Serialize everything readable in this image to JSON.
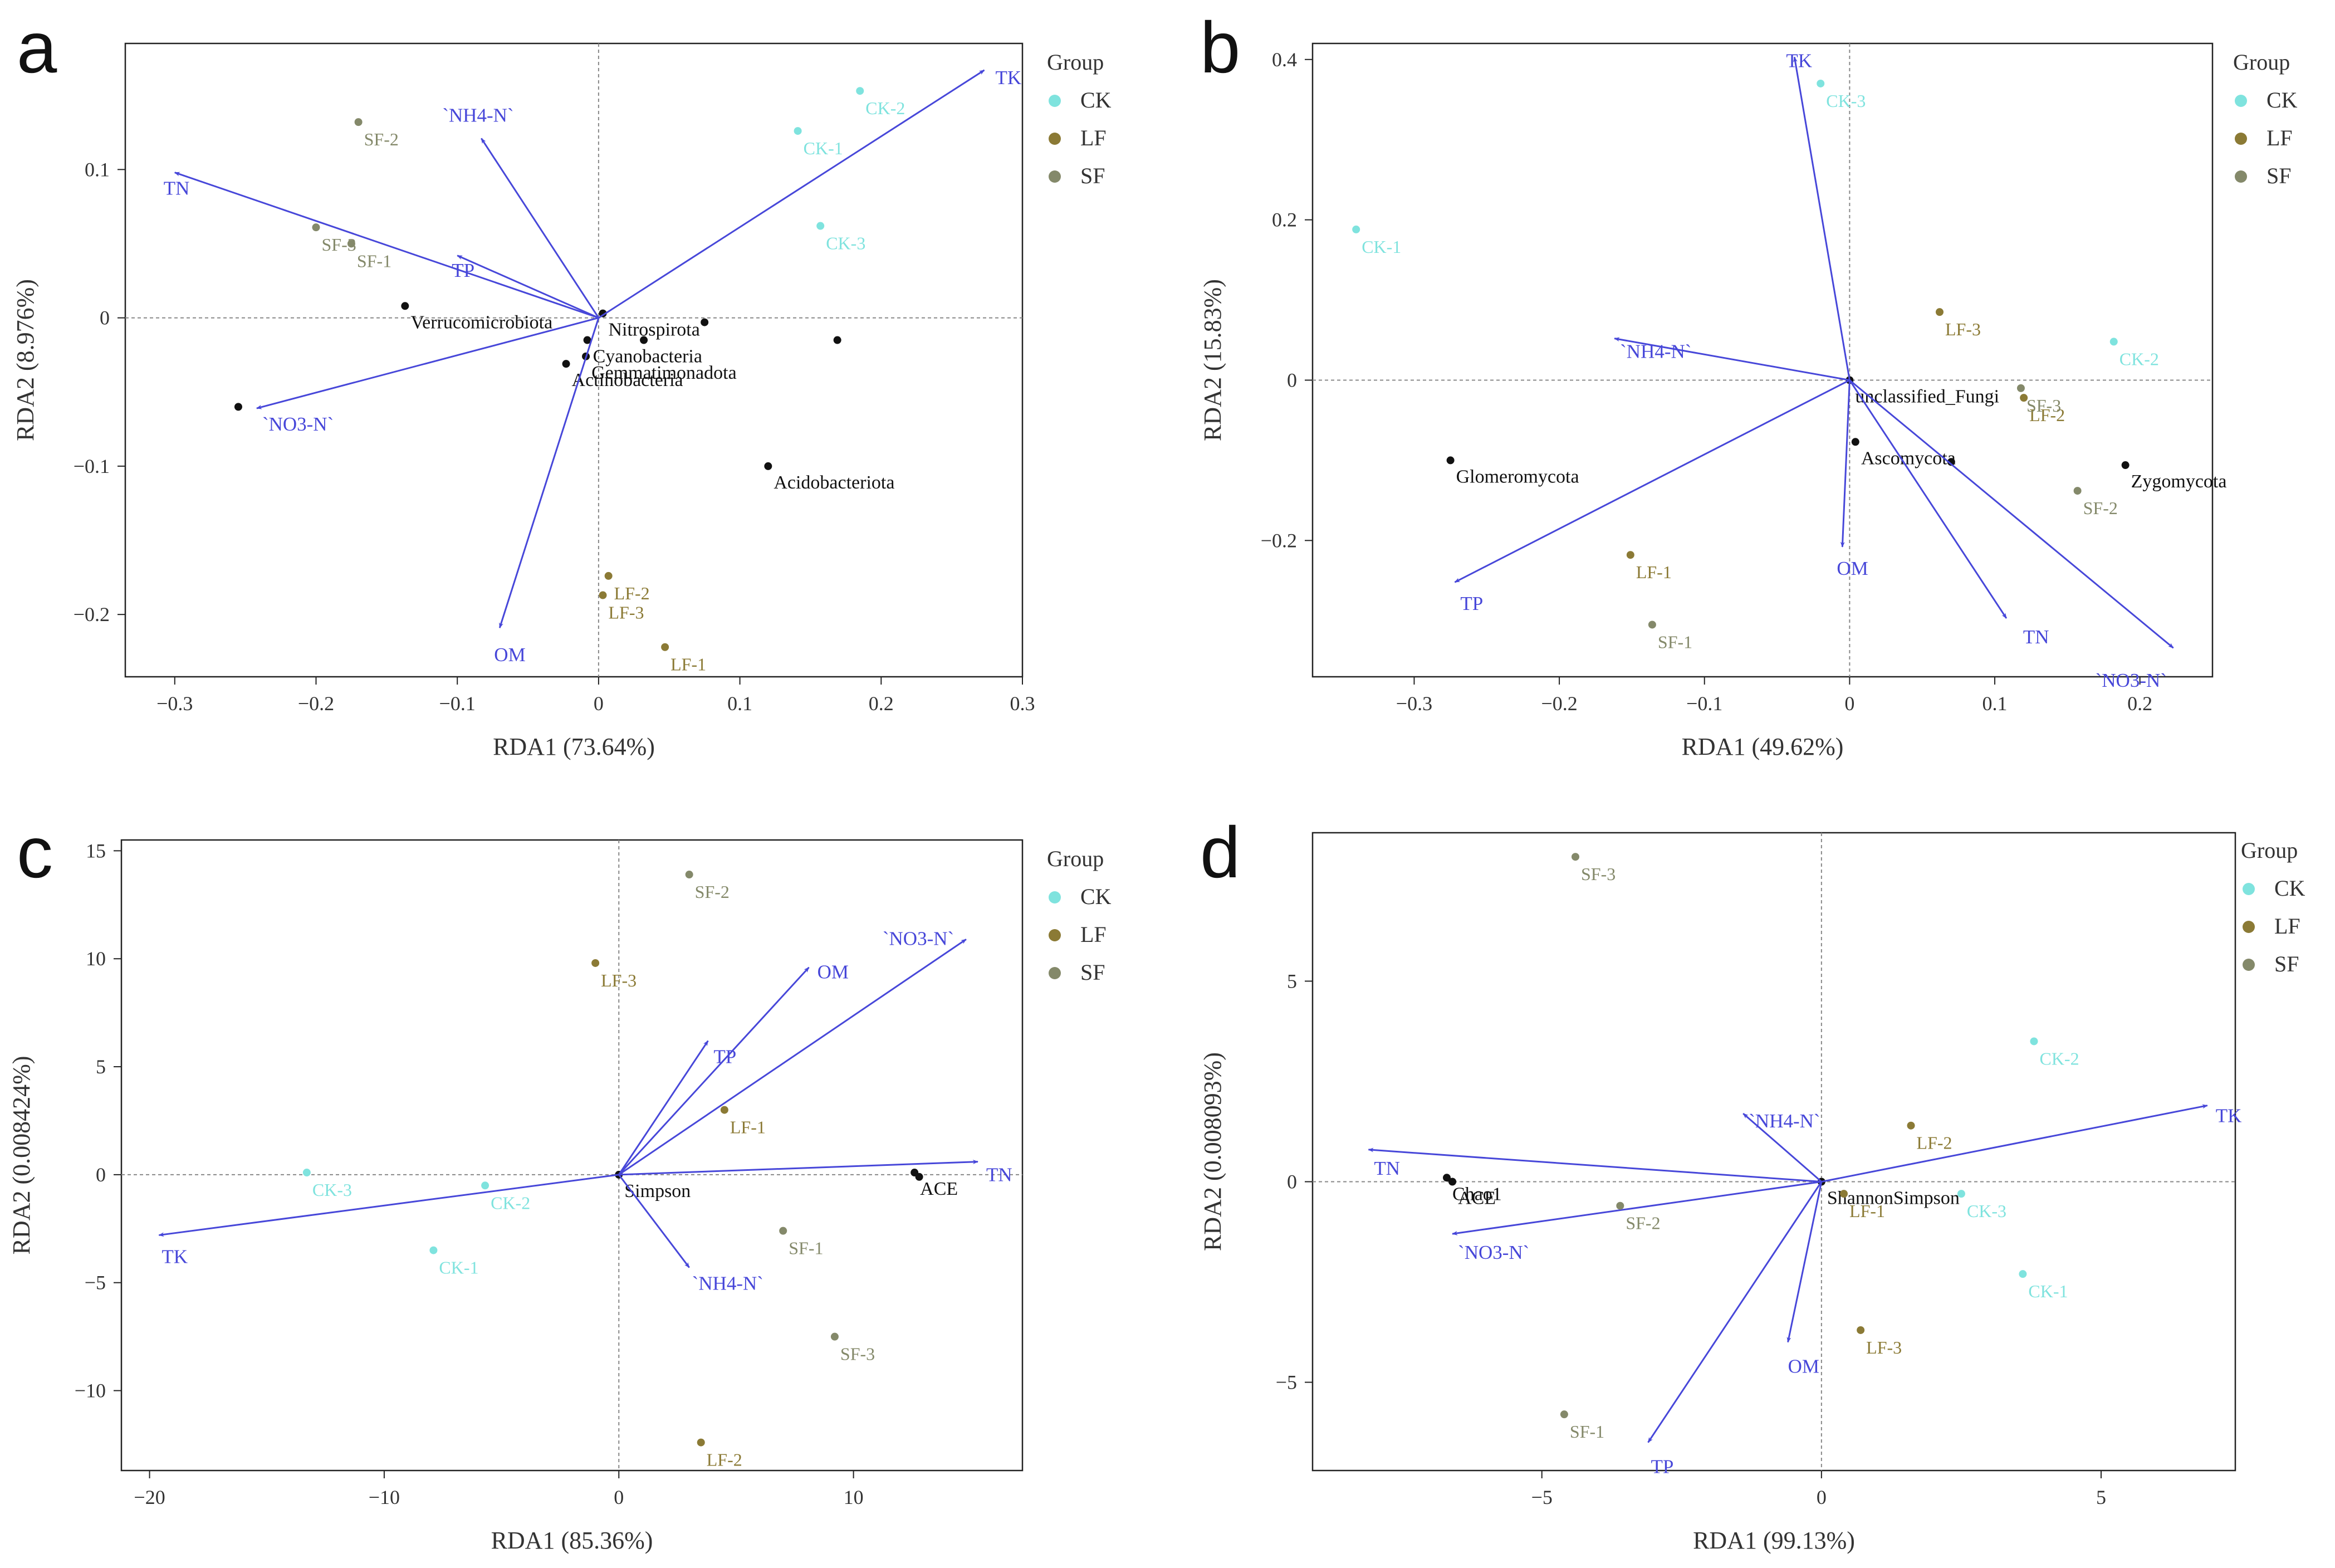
{
  "figure": {
    "colors": {
      "CK": "#7fe3de",
      "LF": "#8b7a35",
      "SF": "#84896a",
      "arrow": "#4747d9",
      "taxon": "#111111"
    },
    "legend": {
      "title": "Group",
      "items": [
        "CK",
        "LF",
        "SF"
      ]
    }
  },
  "chart_data": [
    {
      "panel": "a",
      "type": "scatter",
      "subtype": "rda-biplot",
      "xlabel": "RDA1 (73.64%)",
      "ylabel": "RDA2 (8.976%)",
      "xlim": [
        -0.335,
        0.3
      ],
      "ylim": [
        -0.242,
        0.185
      ],
      "xticks": [
        -0.3,
        -0.2,
        -0.1,
        0,
        0.1,
        0.2,
        0.3
      ],
      "xticklabels": [
        "−0.3",
        "−0.2",
        "−0.1",
        "0",
        "0.1",
        "0.2",
        "0.3"
      ],
      "yticks": [
        0.1,
        0,
        -0.1,
        -0.2
      ],
      "yticklabels": [
        "0.1",
        "0",
        "−0.1",
        "−0.2"
      ],
      "vectors": [
        {
          "label": "TK",
          "x": 0.273,
          "y": 0.167
        },
        {
          "label": "`NH4-N`",
          "x": -0.083,
          "y": 0.121
        },
        {
          "label": "TN",
          "x": -0.3,
          "y": 0.098
        },
        {
          "label": "TP",
          "x": -0.1,
          "y": 0.042
        },
        {
          "label": "`NO3-N`",
          "x": -0.242,
          "y": -0.061
        },
        {
          "label": "OM",
          "x": -0.07,
          "y": -0.209
        }
      ],
      "samples": [
        {
          "label": "CK-1",
          "group": "CK",
          "x": 0.141,
          "y": 0.126
        },
        {
          "label": "CK-2",
          "group": "CK",
          "x": 0.185,
          "y": 0.153
        },
        {
          "label": "CK-3",
          "group": "CK",
          "x": 0.157,
          "y": 0.062
        },
        {
          "label": "SF-1",
          "group": "SF",
          "x": -0.175,
          "y": 0.05
        },
        {
          "label": "SF-2",
          "group": "SF",
          "x": -0.17,
          "y": 0.132
        },
        {
          "label": "SF-3",
          "group": "SF",
          "x": -0.2,
          "y": 0.061
        },
        {
          "label": "LF-1",
          "group": "LF",
          "x": 0.047,
          "y": -0.222
        },
        {
          "label": "LF-2",
          "group": "LF",
          "x": 0.007,
          "y": -0.174
        },
        {
          "label": "LF-3",
          "group": "LF",
          "x": 0.003,
          "y": -0.187
        }
      ],
      "taxa": [
        {
          "label": "Verrucomicrobiota",
          "x": -0.137,
          "y": 0.008
        },
        {
          "label": "Nitrospirota",
          "x": 0.003,
          "y": 0.003
        },
        {
          "label": "Cyanobacteria",
          "x": -0.008,
          "y": -0.015
        },
        {
          "label": "Gemmatimonadota",
          "x": -0.009,
          "y": -0.026
        },
        {
          "label": "Actinobacteria",
          "x": -0.023,
          "y": -0.031
        },
        {
          "label": "Acidobacteriota",
          "x": 0.12,
          "y": -0.1
        }
      ],
      "extra_points": [
        {
          "x": 0.032,
          "y": -0.015
        },
        {
          "x": 0.075,
          "y": -0.003
        },
        {
          "x": 0.169,
          "y": -0.015
        },
        {
          "x": -0.255,
          "y": -0.06
        }
      ]
    },
    {
      "panel": "b",
      "type": "scatter",
      "subtype": "rda-biplot",
      "xlabel": "RDA1 (49.62%)",
      "ylabel": "RDA2 (15.83%)",
      "xlim": [
        -0.37,
        0.25
      ],
      "ylim": [
        -0.37,
        0.42
      ],
      "xticks": [
        -0.3,
        -0.2,
        -0.1,
        0,
        0.1,
        0.2
      ],
      "xticklabels": [
        "−0.3",
        "−0.2",
        "−0.1",
        "0",
        "0.1",
        "0.2"
      ],
      "yticks": [
        0.4,
        0.2,
        0,
        -0.2
      ],
      "yticklabels": [
        "0.4",
        "0.2",
        "0",
        "−0.2"
      ],
      "vectors": [
        {
          "label": "TK",
          "x": -0.038,
          "y": 0.403
        },
        {
          "label": "`NH4-N`",
          "x": -0.162,
          "y": 0.052
        },
        {
          "label": "TP",
          "x": -0.272,
          "y": -0.252
        },
        {
          "label": "OM",
          "x": -0.005,
          "y": -0.208
        },
        {
          "label": "TN",
          "x": 0.108,
          "y": -0.297
        },
        {
          "label": "`NO3-N`",
          "x": 0.223,
          "y": -0.334
        }
      ],
      "samples": [
        {
          "label": "CK-1",
          "group": "CK",
          "x": -0.34,
          "y": 0.188
        },
        {
          "label": "CK-2",
          "group": "CK",
          "x": 0.182,
          "y": 0.048
        },
        {
          "label": "CK-3",
          "group": "CK",
          "x": -0.02,
          "y": 0.37
        },
        {
          "label": "LF-1",
          "group": "LF",
          "x": -0.151,
          "y": -0.218
        },
        {
          "label": "LF-2",
          "group": "LF",
          "x": 0.12,
          "y": -0.022
        },
        {
          "label": "LF-3",
          "group": "LF",
          "x": 0.062,
          "y": 0.085
        },
        {
          "label": "SF-1",
          "group": "SF",
          "x": -0.136,
          "y": -0.305
        },
        {
          "label": "SF-2",
          "group": "SF",
          "x": 0.157,
          "y": -0.138
        },
        {
          "label": "SF-3",
          "group": "SF",
          "x": 0.118,
          "y": -0.01
        }
      ],
      "taxa": [
        {
          "label": "unclassified_Fungi",
          "x": 0.0,
          "y": 0.0
        },
        {
          "label": "Ascomycota",
          "x": 0.004,
          "y": -0.077
        },
        {
          "label": "Glomeromycota",
          "x": -0.275,
          "y": -0.1
        },
        {
          "label": "Zygomycota",
          "x": 0.19,
          "y": -0.106
        }
      ],
      "extra_points": [
        {
          "x": 0.07,
          "y": -0.102
        }
      ]
    },
    {
      "panel": "c",
      "type": "scatter",
      "subtype": "rda-biplot",
      "xlabel": "RDA1 (85.36%)",
      "ylabel": "RDA2 (0.008424%)",
      "xlim": [
        -21.2,
        17.2
      ],
      "ylim": [
        -13.7,
        15.5
      ],
      "xticks": [
        -20,
        -10,
        0,
        10
      ],
      "xticklabels": [
        "−20",
        "−10",
        "0",
        "10"
      ],
      "yticks": [
        15,
        10,
        5,
        0,
        -5,
        -10
      ],
      "yticklabels": [
        "15",
        "10",
        "5",
        "0",
        "−5",
        "−10"
      ],
      "vectors": [
        {
          "label": "`NO3-N`",
          "x": 14.8,
          "y": 10.9
        },
        {
          "label": "OM",
          "x": 8.1,
          "y": 9.6
        },
        {
          "label": "TP",
          "x": 3.8,
          "y": 6.2
        },
        {
          "label": "TN",
          "x": 15.3,
          "y": 0.6
        },
        {
          "label": "`NH4-N`",
          "x": 3.0,
          "y": -4.3
        },
        {
          "label": "TK",
          "x": -19.6,
          "y": -2.8
        }
      ],
      "samples": [
        {
          "label": "CK-1",
          "group": "CK",
          "x": -7.9,
          "y": -3.5
        },
        {
          "label": "CK-2",
          "group": "CK",
          "x": -5.7,
          "y": -0.5
        },
        {
          "label": "CK-3",
          "group": "CK",
          "x": -13.3,
          "y": 0.1
        },
        {
          "label": "LF-1",
          "group": "LF",
          "x": 4.5,
          "y": 3.0
        },
        {
          "label": "LF-2",
          "group": "LF",
          "x": 3.5,
          "y": -12.4
        },
        {
          "label": "LF-3",
          "group": "LF",
          "x": -1.0,
          "y": 9.8
        },
        {
          "label": "SF-1",
          "group": "SF",
          "x": 7.0,
          "y": -2.6
        },
        {
          "label": "SF-2",
          "group": "SF",
          "x": 3.0,
          "y": 13.9
        },
        {
          "label": "SF-3",
          "group": "SF",
          "x": 9.2,
          "y": -7.5
        }
      ],
      "taxa": [
        {
          "label": "Simpson",
          "x": 0.0,
          "y": 0.0
        },
        {
          "label": "ACE",
          "x": 12.6,
          "y": 0.1
        }
      ],
      "extra_points": [
        {
          "x": 12.8,
          "y": -0.1
        }
      ]
    },
    {
      "panel": "d",
      "type": "scatter",
      "subtype": "rda-biplot",
      "xlabel": "RDA1 (99.13%)",
      "ylabel": "RDA2 (0.008093%)",
      "xlim": [
        -9.1,
        7.4
      ],
      "ylim": [
        -7.2,
        8.7
      ],
      "xticks": [
        -5,
        0,
        5
      ],
      "xticklabels": [
        "−5",
        "0",
        "5"
      ],
      "yticks": [
        5,
        0,
        -5
      ],
      "yticklabels": [
        "5",
        "0",
        "−5"
      ],
      "vectors": [
        {
          "label": "TK",
          "x": 6.9,
          "y": 1.9
        },
        {
          "label": "`NH4-N`",
          "x": -1.4,
          "y": 1.7
        },
        {
          "label": "TN",
          "x": -8.1,
          "y": 0.8
        },
        {
          "label": "`NO3-N`",
          "x": -6.6,
          "y": -1.3
        },
        {
          "label": "OM",
          "x": -0.6,
          "y": -4.0
        },
        {
          "label": "TP",
          "x": -3.1,
          "y": -6.5
        }
      ],
      "samples": [
        {
          "label": "CK-1",
          "group": "CK",
          "x": 3.6,
          "y": -2.3
        },
        {
          "label": "CK-2",
          "group": "CK",
          "x": 3.8,
          "y": 3.5
        },
        {
          "label": "CK-3",
          "group": "CK",
          "x": 2.5,
          "y": -0.3
        },
        {
          "label": "LF-1",
          "group": "LF",
          "x": 0.4,
          "y": -0.3
        },
        {
          "label": "LF-2",
          "group": "LF",
          "x": 1.6,
          "y": 1.4
        },
        {
          "label": "LF-3",
          "group": "LF",
          "x": 0.7,
          "y": -3.7
        },
        {
          "label": "SF-1",
          "group": "SF",
          "x": -4.6,
          "y": -5.8
        },
        {
          "label": "SF-2",
          "group": "SF",
          "x": -3.6,
          "y": -0.6
        },
        {
          "label": "SF-3",
          "group": "SF",
          "x": -4.4,
          "y": 8.1
        }
      ],
      "taxa": [
        {
          "label": "ShannonSimpson",
          "x": 0.0,
          "y": 0.0
        },
        {
          "label": "Chao1",
          "x": -6.7,
          "y": 0.1
        },
        {
          "label": "ACE",
          "x": -6.6,
          "y": 0.0
        }
      ],
      "extra_points": []
    }
  ]
}
